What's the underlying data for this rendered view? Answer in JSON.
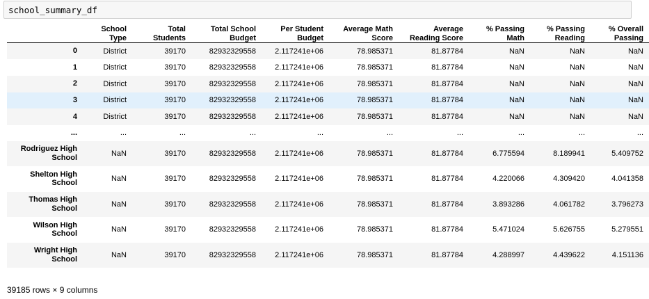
{
  "input_cell": {
    "code": "school_summary_df"
  },
  "table": {
    "columns": [
      "School\nType",
      "Total\nStudents",
      "Total School\nBudget",
      "Per Student\nBudget",
      "Average Math\nScore",
      "Average\nReading Score",
      "% Passing\nMath",
      "% Passing\nReading",
      "% Overall\nPassing"
    ],
    "rows": [
      {
        "index": "0",
        "values": [
          "District",
          "39170",
          "82932329558",
          "2.117241e+06",
          "78.985371",
          "81.87784",
          "NaN",
          "NaN",
          "NaN"
        ]
      },
      {
        "index": "1",
        "values": [
          "District",
          "39170",
          "82932329558",
          "2.117241e+06",
          "78.985371",
          "81.87784",
          "NaN",
          "NaN",
          "NaN"
        ]
      },
      {
        "index": "2",
        "values": [
          "District",
          "39170",
          "82932329558",
          "2.117241e+06",
          "78.985371",
          "81.87784",
          "NaN",
          "NaN",
          "NaN"
        ]
      },
      {
        "index": "3",
        "values": [
          "District",
          "39170",
          "82932329558",
          "2.117241e+06",
          "78.985371",
          "81.87784",
          "NaN",
          "NaN",
          "NaN"
        ]
      },
      {
        "index": "4",
        "values": [
          "District",
          "39170",
          "82932329558",
          "2.117241e+06",
          "78.985371",
          "81.87784",
          "NaN",
          "NaN",
          "NaN"
        ]
      },
      {
        "index": "...",
        "values": [
          "...",
          "...",
          "...",
          "...",
          "...",
          "...",
          "...",
          "...",
          "..."
        ]
      },
      {
        "index": "Rodriguez High\nSchool",
        "values": [
          "NaN",
          "39170",
          "82932329558",
          "2.117241e+06",
          "78.985371",
          "81.87784",
          "6.775594",
          "8.189941",
          "5.409752"
        ]
      },
      {
        "index": "Shelton High\nSchool",
        "values": [
          "NaN",
          "39170",
          "82932329558",
          "2.117241e+06",
          "78.985371",
          "81.87784",
          "4.220066",
          "4.309420",
          "4.041358"
        ]
      },
      {
        "index": "Thomas High\nSchool",
        "values": [
          "NaN",
          "39170",
          "82932329558",
          "2.117241e+06",
          "78.985371",
          "81.87784",
          "3.893286",
          "4.061782",
          "3.796273"
        ]
      },
      {
        "index": "Wilson High\nSchool",
        "values": [
          "NaN",
          "39170",
          "82932329558",
          "2.117241e+06",
          "78.985371",
          "81.87784",
          "5.471024",
          "5.626755",
          "5.279551"
        ]
      },
      {
        "index": "Wright High\nSchool",
        "values": [
          "NaN",
          "39170",
          "82932329558",
          "2.117241e+06",
          "78.985371",
          "81.87784",
          "4.288997",
          "4.439622",
          "4.151136"
        ]
      }
    ]
  },
  "footer": "39185 rows × 9 columns",
  "colors": {
    "stripe": "#f5f5f5",
    "hover_row": "#e1f0fc",
    "input_bg": "#f7f7f7"
  }
}
